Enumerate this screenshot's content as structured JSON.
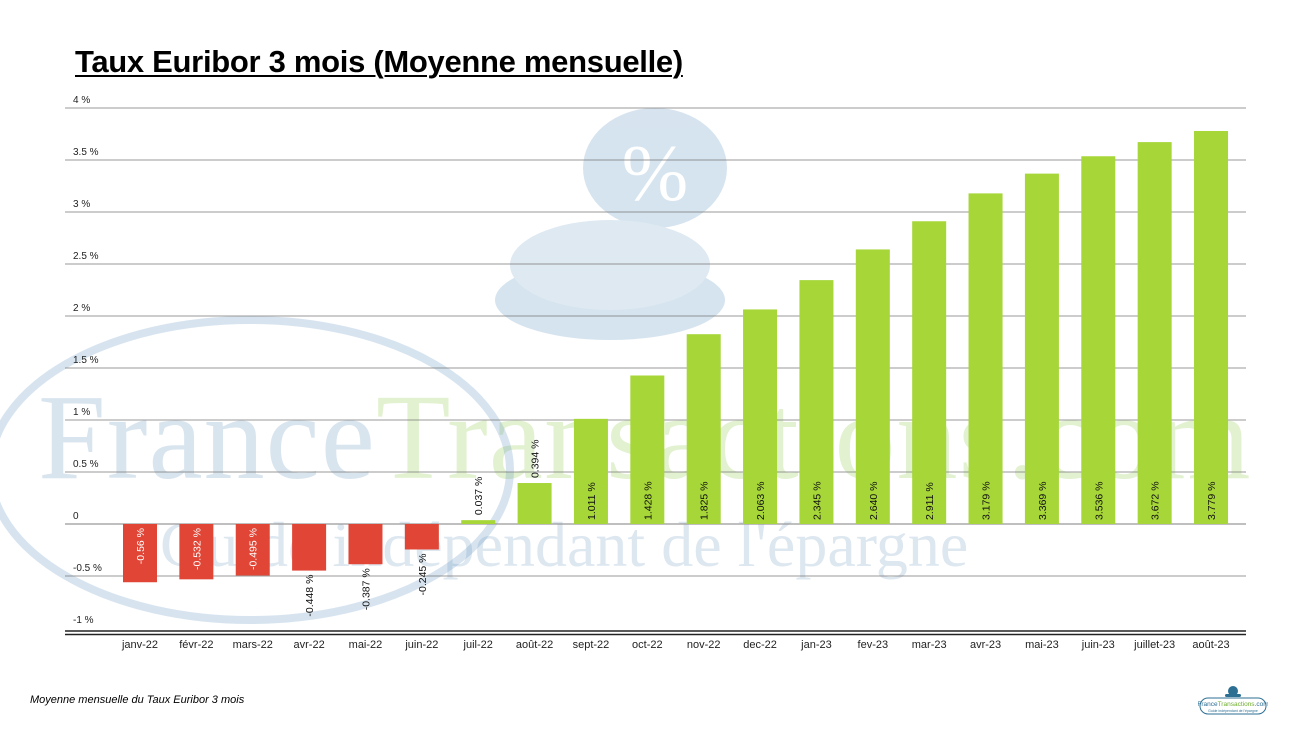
{
  "title": "Taux Euribor 3 mois (Moyenne mensuelle)",
  "footer": "Moyenne mensuelle du Taux Euribor 3 mois",
  "watermark": {
    "line1_a": "France",
    "line1_b": "Transactions.com",
    "line2": "Guide indépendant de l'épargne"
  },
  "logo_text": "FranceTransactions.com — Guide indépendant de l'épargne",
  "colors": {
    "positive": "#a6d638",
    "negative": "#e04535",
    "watermark_blue": "#78a0c3",
    "watermark_green": "#c8e6a0"
  },
  "chart_data": {
    "type": "bar",
    "title": "Taux Euribor 3 mois (Moyenne mensuelle)",
    "xlabel": "",
    "ylabel": "",
    "ylim": [
      -1,
      4
    ],
    "yticks": [
      4,
      3.5,
      3,
      2.5,
      2,
      1.5,
      1,
      0.5,
      0,
      -0.5,
      -1
    ],
    "ytick_labels": [
      "4 %",
      "3.5 %",
      "3 %",
      "2.5 %",
      "2 %",
      "1.5 %",
      "1 %",
      "0.5 %",
      "0",
      "-0.5 %",
      "-1 %"
    ],
    "grid": true,
    "categories": [
      "janv-22",
      "févr-22",
      "mars-22",
      "avr-22",
      "mai-22",
      "juin-22",
      "juil-22",
      "août-22",
      "sept-22",
      "oct-22",
      "nov-22",
      "dec-22",
      "jan-23",
      "fev-23",
      "mar-23",
      "avr-23",
      "mai-23",
      "juin-23",
      "juillet-23",
      "août-23"
    ],
    "values": [
      -0.56,
      -0.532,
      -0.495,
      -0.448,
      -0.387,
      -0.245,
      0.037,
      0.394,
      1.011,
      1.428,
      1.825,
      2.063,
      2.345,
      2.64,
      2.911,
      3.179,
      3.369,
      3.536,
      3.672,
      3.779
    ],
    "data_labels": [
      "-0.56 %",
      "-0.532 %",
      "-0.495 %",
      "-0.448 %",
      "-0.387 %",
      "-0.245 %",
      "0.037 %",
      "0.394 %",
      "1.011 %",
      "1.428 %",
      "1.825 %",
      "2.063 %",
      "2.345 %",
      "2.640 %",
      "2.911 %",
      "3.179 %",
      "3.369 %",
      "3.536 %",
      "3.672 %",
      "3.779 %"
    ]
  }
}
